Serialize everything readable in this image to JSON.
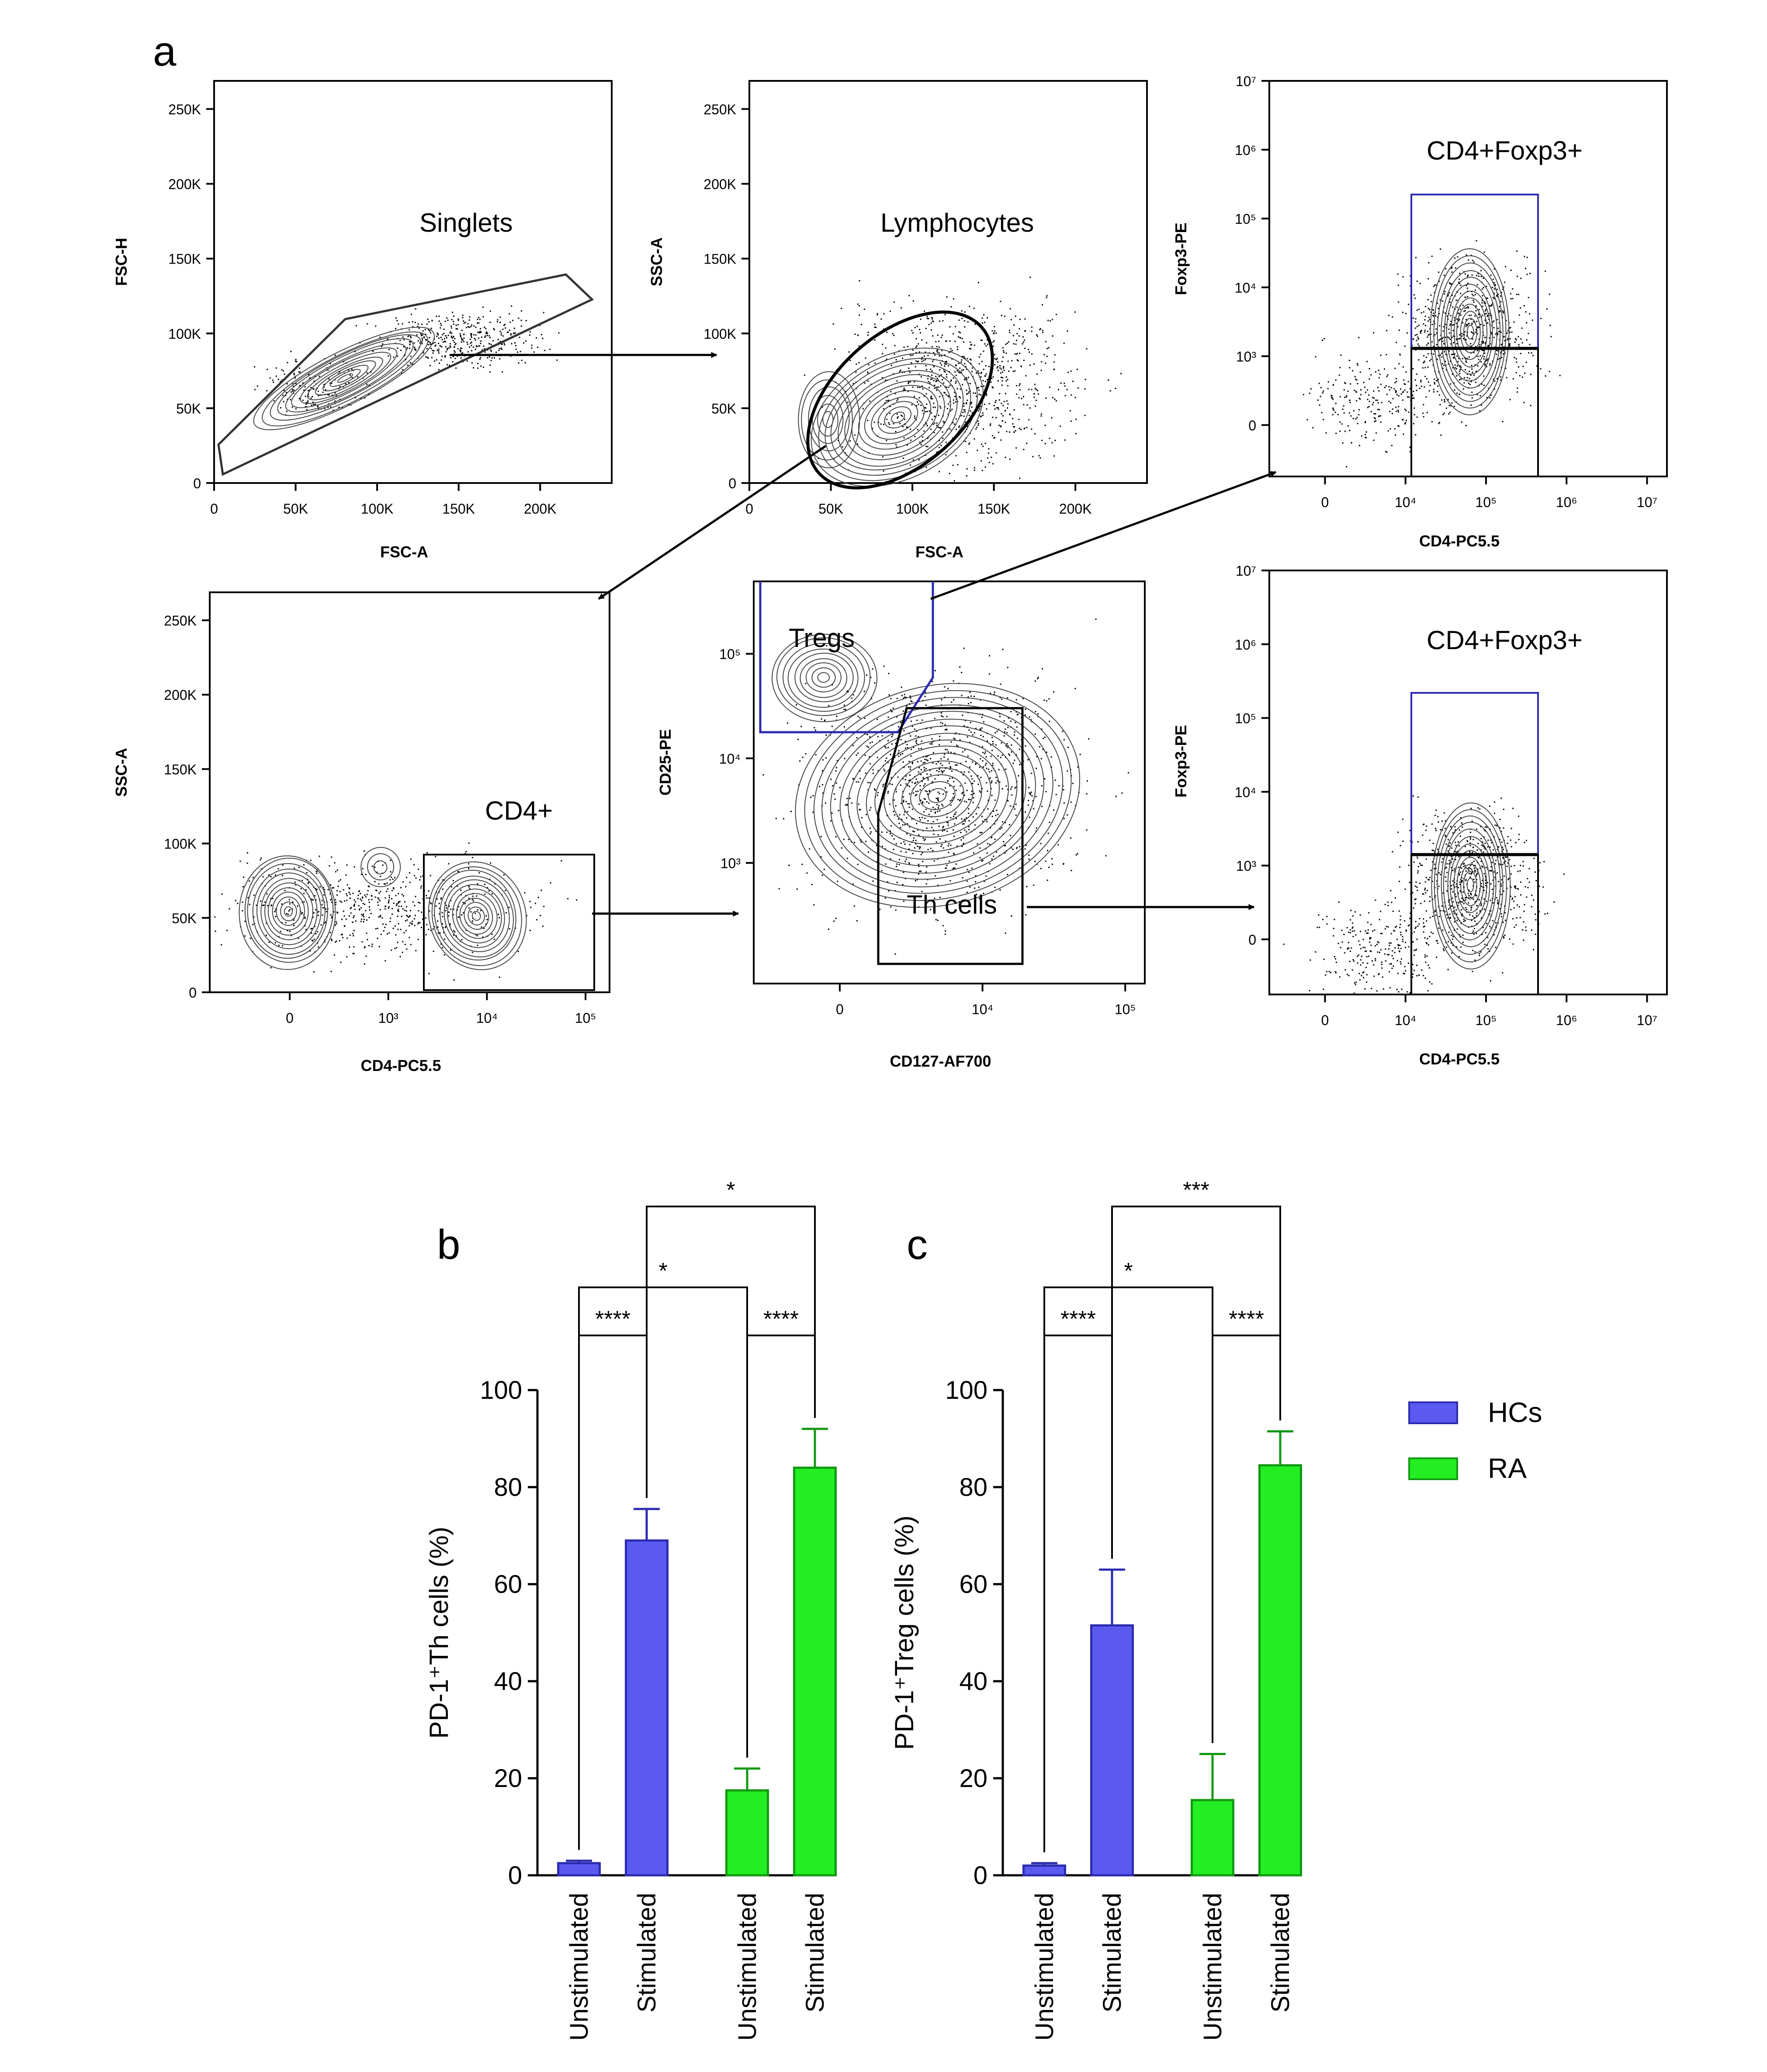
{
  "figure_letter_a": "a",
  "flow": {
    "p1": {
      "gate": "Singlets",
      "xlabel": "FSC-A",
      "ylabel": "FSC-H",
      "xticks": [
        "0",
        "50K",
        "100K",
        "150K",
        "200K"
      ],
      "yticks": [
        "0",
        "50K",
        "100K",
        "150K",
        "200K",
        "250K"
      ]
    },
    "p2": {
      "gate": "Lymphocytes",
      "xlabel": "FSC-A",
      "ylabel": "SSC-A",
      "xticks": [
        "0",
        "50K",
        "100K",
        "150K",
        "200K"
      ],
      "yticks": [
        "0",
        "50K",
        "100K",
        "150K",
        "200K",
        "250K"
      ]
    },
    "p3": {
      "gate": "CD4+Foxp3+",
      "xlabel": "CD4-PC5.5",
      "ylabel": "Foxp3-PE",
      "xticks": [
        "0",
        "10⁴",
        "10⁵",
        "10⁶",
        "10⁷"
      ],
      "yticks": [
        "0",
        "10³",
        "10⁴",
        "10⁵",
        "10⁶",
        "10⁷"
      ]
    },
    "p4": {
      "gate": "CD4+",
      "xlabel": "CD4-PC5.5",
      "ylabel": "SSC-A",
      "xticks": [
        "0",
        "10³",
        "10⁴",
        "10⁵"
      ],
      "yticks": [
        "0",
        "50K",
        "100K",
        "150K",
        "200K",
        "250K"
      ]
    },
    "p5": {
      "gate_tregs": "Tregs",
      "gate_th": "Th cells",
      "xlabel": "CD127-AF700",
      "ylabel": "CD25-PE",
      "xticks": [
        "0",
        "10⁴",
        "10⁵"
      ],
      "yticks": [
        "10³",
        "10⁴",
        "10⁵"
      ]
    },
    "p6": {
      "gate": "CD4+Foxp3+",
      "xlabel": "CD4-PC5.5",
      "ylabel": "Foxp3-PE",
      "xticks": [
        "0",
        "10⁴",
        "10⁵",
        "10⁶",
        "10⁷"
      ],
      "yticks": [
        "0",
        "10³",
        "10⁴",
        "10⁵",
        "10⁶",
        "10⁷"
      ]
    }
  },
  "legend": {
    "items": [
      {
        "label": "HCs",
        "color": "#5a5af0"
      },
      {
        "label": "RA",
        "color": "#22ee22"
      }
    ]
  },
  "chart_data": [
    {
      "type": "bar",
      "panel": "b",
      "ylabel": "PD-1⁺Th cells (%)",
      "ylim": [
        0,
        100
      ],
      "yticks": [
        0,
        20,
        40,
        60,
        80,
        100
      ],
      "categories": [
        "Unstimulated",
        "Stimulated",
        "Unstimulated",
        "Stimulated"
      ],
      "groups": [
        "HCs",
        "HCs",
        "RA",
        "RA"
      ],
      "values": [
        2.5,
        69,
        17.5,
        84
      ],
      "errors": [
        0.5,
        6.5,
        4.5,
        8
      ],
      "significance": [
        {
          "pair": [
            0,
            1
          ],
          "label": "****"
        },
        {
          "pair": [
            2,
            3
          ],
          "label": "****"
        },
        {
          "pair": [
            0,
            2
          ],
          "label": "*"
        },
        {
          "pair": [
            1,
            3
          ],
          "label": "*"
        }
      ]
    },
    {
      "type": "bar",
      "panel": "c",
      "ylabel": "PD-1⁺Treg cells (%)",
      "ylim": [
        0,
        100
      ],
      "yticks": [
        0,
        20,
        40,
        60,
        80,
        100
      ],
      "categories": [
        "Unstimulated",
        "Stimulated",
        "Unstimulated",
        "Stimulated"
      ],
      "groups": [
        "HCs",
        "HCs",
        "RA",
        "RA"
      ],
      "values": [
        2,
        51.5,
        15.5,
        84.5
      ],
      "errors": [
        0.5,
        11.5,
        9.5,
        7
      ],
      "significance": [
        {
          "pair": [
            0,
            1
          ],
          "label": "****"
        },
        {
          "pair": [
            2,
            3
          ],
          "label": "****"
        },
        {
          "pair": [
            0,
            2
          ],
          "label": "*"
        },
        {
          "pair": [
            1,
            3
          ],
          "label": "***"
        }
      ]
    }
  ]
}
